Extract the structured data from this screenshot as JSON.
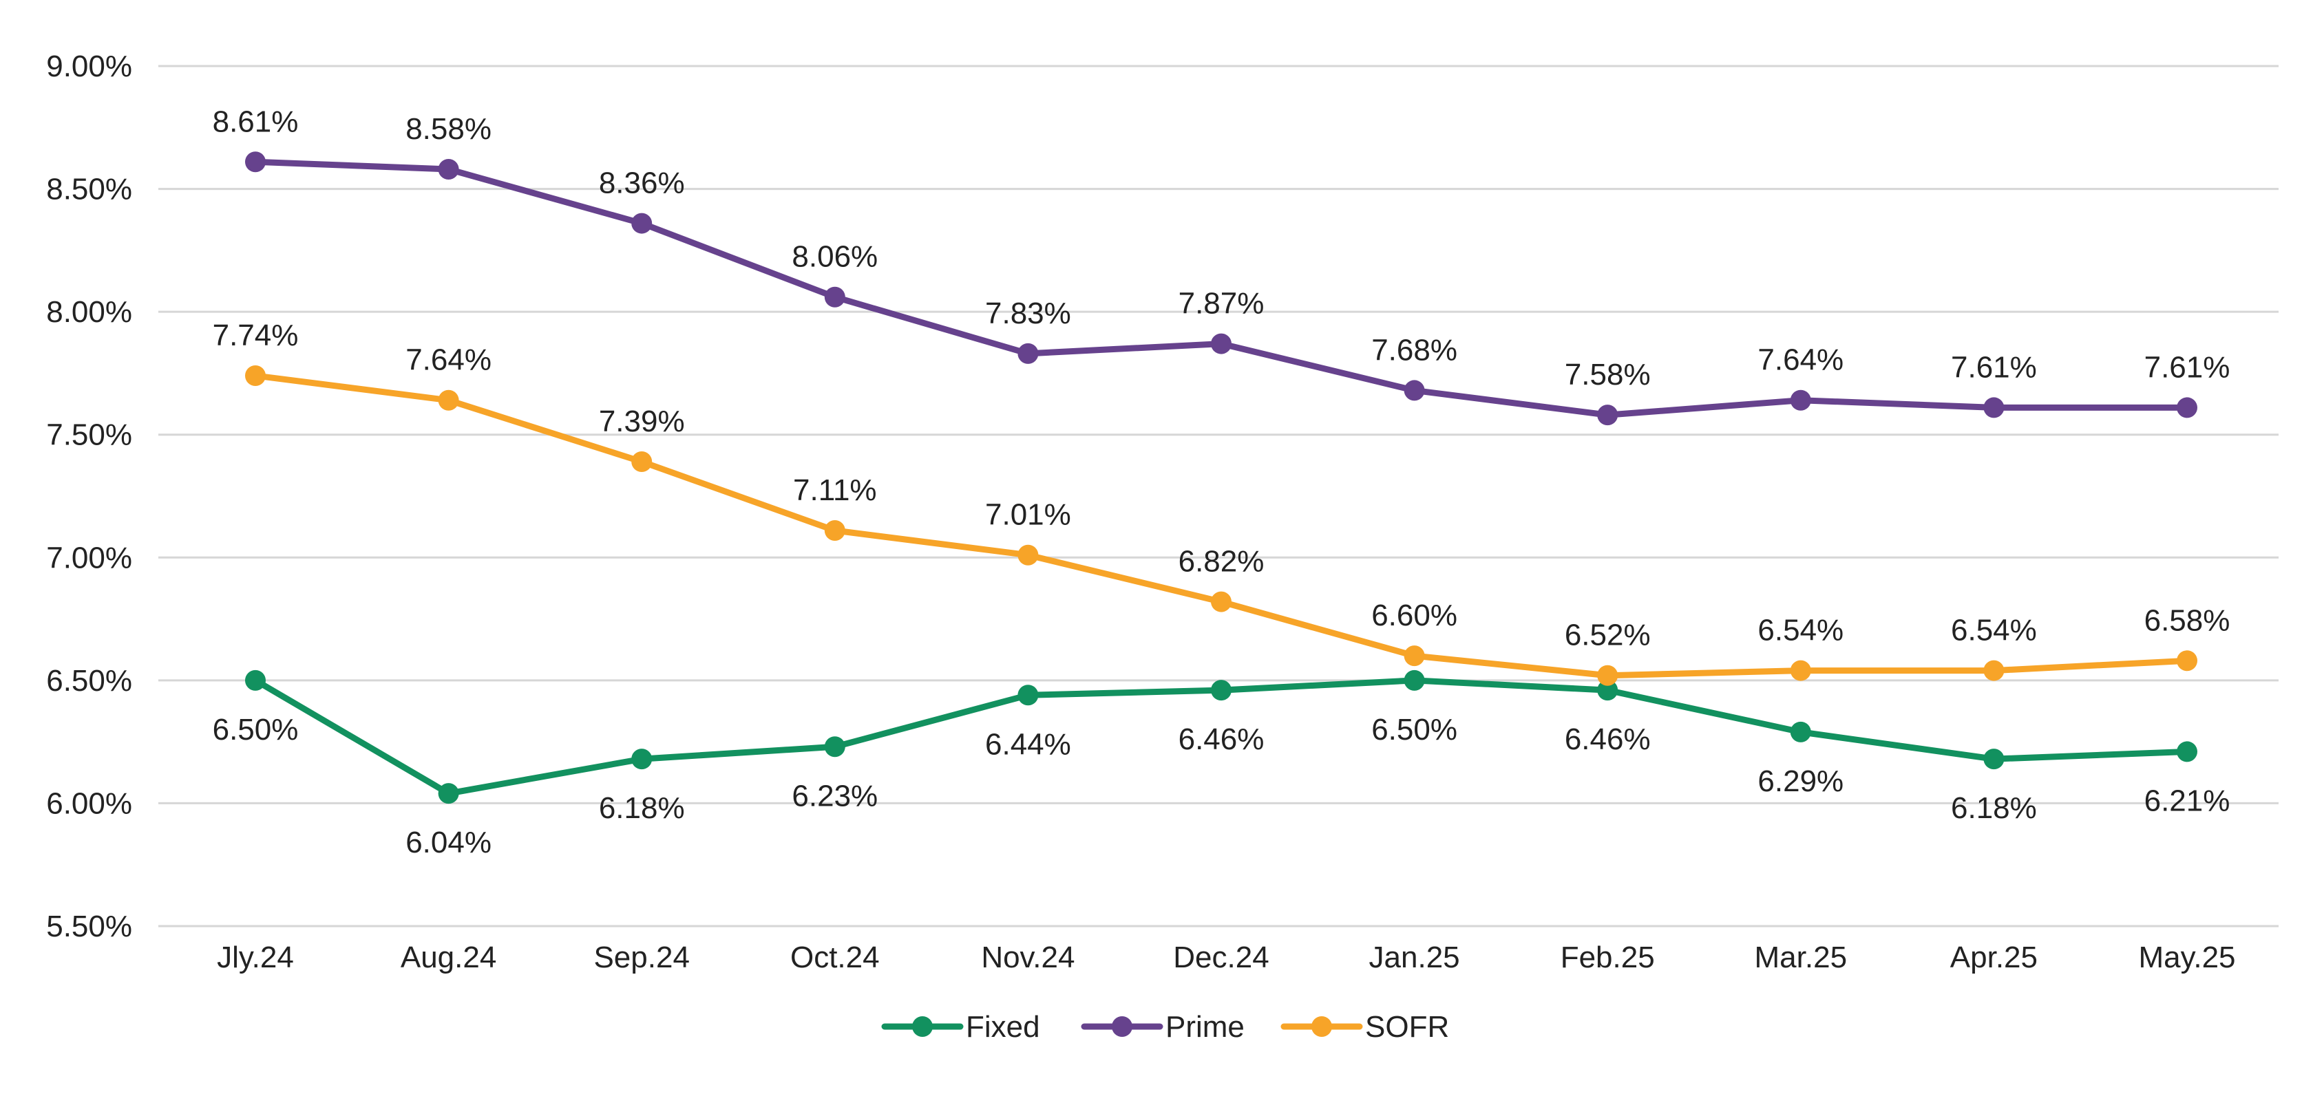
{
  "chart_data": {
    "type": "line",
    "categories": [
      "Jly.24",
      "Aug.24",
      "Sep.24",
      "Oct.24",
      "Nov.24",
      "Dec.24",
      "Jan.25",
      "Feb.25",
      "Mar.25",
      "Apr.25",
      "May.25"
    ],
    "ylim": [
      5.5,
      9.0
    ],
    "yticks": [
      5.5,
      6.0,
      6.5,
      7.0,
      7.5,
      8.0,
      8.5,
      9.0
    ],
    "ytick_labels": [
      "5.50%",
      "6.00%",
      "6.50%",
      "7.00%",
      "7.50%",
      "8.00%",
      "8.50%",
      "9.00%"
    ],
    "grid": true,
    "legend_position": "bottom-center",
    "title": "",
    "xlabel": "",
    "ylabel": "",
    "series": [
      {
        "name": "Fixed",
        "color": "#12915f",
        "values": [
          6.5,
          6.04,
          6.18,
          6.23,
          6.44,
          6.46,
          6.5,
          6.46,
          6.29,
          6.18,
          6.21
        ],
        "labels": [
          "6.50%",
          "6.04%",
          "6.18%",
          "6.23%",
          "6.44%",
          "6.46%",
          "6.50%",
          "6.46%",
          "6.29%",
          "6.18%",
          "6.21%"
        ],
        "label_side": "below"
      },
      {
        "name": "Prime",
        "color": "#66428d",
        "values": [
          8.61,
          8.58,
          8.36,
          8.06,
          7.83,
          7.87,
          7.68,
          7.58,
          7.64,
          7.61,
          7.61
        ],
        "labels": [
          "8.61%",
          "8.58%",
          "8.36%",
          "8.06%",
          "7.83%",
          "7.87%",
          "7.68%",
          "7.58%",
          "7.64%",
          "7.61%",
          "7.61%"
        ],
        "label_side": "above"
      },
      {
        "name": "SOFR",
        "color": "#f7a428",
        "values": [
          7.74,
          7.64,
          7.39,
          7.11,
          7.01,
          6.82,
          6.6,
          6.52,
          6.54,
          6.54,
          6.58
        ],
        "labels": [
          "7.74%",
          "7.64%",
          "7.39%",
          "7.11%",
          "7.01%",
          "6.82%",
          "6.60%",
          "6.52%",
          "6.54%",
          "6.54%",
          "6.58%"
        ],
        "label_side": "above"
      }
    ]
  }
}
